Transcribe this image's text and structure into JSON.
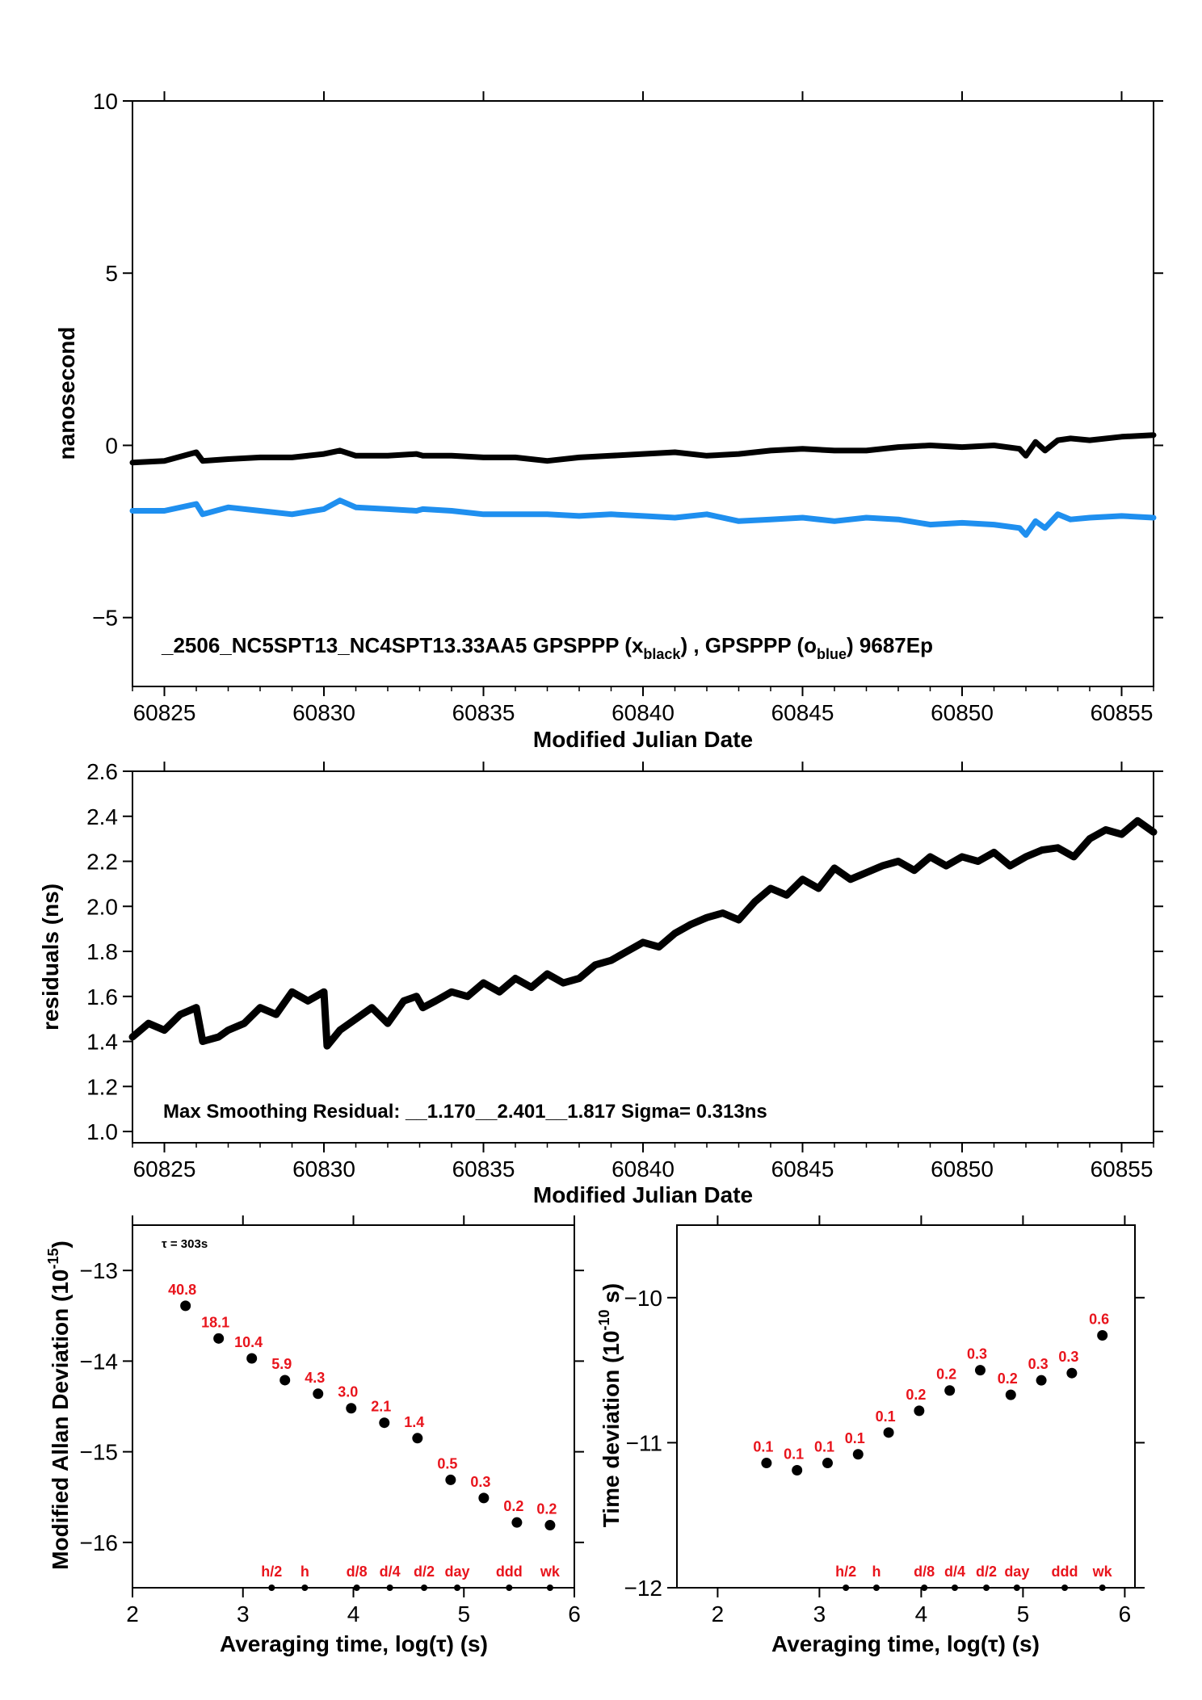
{
  "colors": {
    "black_series": "#000000",
    "blue_series": "#1f8fef",
    "label_red": "#e8141c"
  },
  "chart_data": [
    {
      "type": "line",
      "ylabel": "nanosecond",
      "xlabel": "Modified Julian Date",
      "xlim": [
        60824,
        60856
      ],
      "ylim": [
        -7,
        10
      ],
      "xticks": [
        60825,
        60830,
        60835,
        60840,
        60845,
        60850,
        60855
      ],
      "yticks": [
        -5,
        0,
        5,
        10
      ],
      "ytick_labels": [
        "−5",
        "0",
        "5",
        "10"
      ],
      "annotation": {
        "prefix": "_2506_NC5SPT13_NC4SPT13.33AA5     GPSPPP (x",
        "sub1": "black",
        "middle": ") ,  GPSPPP (o",
        "sub2": "blue",
        "suffix": ")  9687Ep"
      },
      "series": [
        {
          "color": "#000000",
          "x": [
            60824,
            60825,
            60826,
            60826.2,
            60827,
            60828,
            60829,
            60830,
            60830.5,
            60831,
            60832,
            60832.9,
            60833.1,
            60834,
            60835,
            60836,
            60837,
            60838,
            60839,
            60840,
            60841,
            60842,
            60843,
            60844,
            60845,
            60846,
            60847,
            60848,
            60849,
            60850,
            60851,
            60851.8,
            60852,
            60852.3,
            60852.6,
            60853,
            60853.4,
            60854,
            60855,
            60856
          ],
          "y": [
            -0.5,
            -0.45,
            -0.2,
            -0.45,
            -0.4,
            -0.35,
            -0.35,
            -0.25,
            -0.15,
            -0.3,
            -0.3,
            -0.25,
            -0.3,
            -0.3,
            -0.35,
            -0.35,
            -0.45,
            -0.35,
            -0.3,
            -0.25,
            -0.2,
            -0.3,
            -0.25,
            -0.15,
            -0.1,
            -0.15,
            -0.15,
            -0.05,
            0.0,
            -0.05,
            0.0,
            -0.1,
            -0.3,
            0.1,
            -0.15,
            0.15,
            0.2,
            0.15,
            0.25,
            0.3
          ]
        },
        {
          "color": "#1f8fef",
          "x": [
            60824,
            60825,
            60826,
            60826.2,
            60827,
            60828,
            60829,
            60830,
            60830.5,
            60831,
            60832,
            60832.9,
            60833.1,
            60834,
            60835,
            60836,
            60837,
            60838,
            60839,
            60840,
            60841,
            60842,
            60843,
            60844,
            60845,
            60846,
            60847,
            60848,
            60849,
            60850,
            60851,
            60851.8,
            60852,
            60852.3,
            60852.6,
            60853,
            60853.4,
            60854,
            60855,
            60856
          ],
          "y": [
            -1.9,
            -1.9,
            -1.7,
            -2.0,
            -1.8,
            -1.9,
            -2.0,
            -1.85,
            -1.6,
            -1.8,
            -1.85,
            -1.9,
            -1.85,
            -1.9,
            -2.0,
            -2.0,
            -2.0,
            -2.05,
            -2.0,
            -2.05,
            -2.1,
            -2.0,
            -2.2,
            -2.15,
            -2.1,
            -2.2,
            -2.1,
            -2.15,
            -2.3,
            -2.25,
            -2.3,
            -2.4,
            -2.6,
            -2.2,
            -2.4,
            -2.0,
            -2.15,
            -2.1,
            -2.05,
            -2.1
          ]
        }
      ]
    },
    {
      "type": "line",
      "ylabel": "residuals (ns)",
      "xlabel": "Modified Julian Date",
      "xlim": [
        60824,
        60856
      ],
      "ylim": [
        0.95,
        2.6
      ],
      "xticks": [
        60825,
        60830,
        60835,
        60840,
        60845,
        60850,
        60855
      ],
      "yticks": [
        1.0,
        1.2,
        1.4,
        1.6,
        1.8,
        2.0,
        2.2,
        2.4,
        2.6
      ],
      "ytick_labels": [
        "1.0",
        "1.2",
        "1.4",
        "1.6",
        "1.8",
        "2.0",
        "2.2",
        "2.4",
        "2.6"
      ],
      "annotation": "Max Smoothing Residual: __1.170__2.401__1.817  Sigma= 0.313ns",
      "series": [
        {
          "color": "#000000",
          "x": [
            60824,
            60824.5,
            60825,
            60825.5,
            60826,
            60826.2,
            60826.7,
            60827,
            60827.5,
            60828,
            60828.5,
            60829,
            60829.5,
            60830,
            60830.1,
            60830.5,
            60831,
            60831.5,
            60832,
            60832.5,
            60832.9,
            60833.1,
            60833.5,
            60834,
            60834.5,
            60835,
            60835.5,
            60836,
            60836.5,
            60837,
            60837.5,
            60838,
            60838.5,
            60839,
            60839.5,
            60840,
            60840.5,
            60841,
            60841.5,
            60842,
            60842.5,
            60843,
            60843.5,
            60844,
            60844.5,
            60845,
            60845.5,
            60846,
            60846.5,
            60847,
            60847.5,
            60848,
            60848.5,
            60849,
            60849.5,
            60850,
            60850.5,
            60851,
            60851.5,
            60852,
            60852.5,
            60853,
            60853.5,
            60854,
            60854.5,
            60855,
            60855.5,
            60856
          ],
          "y": [
            1.42,
            1.48,
            1.45,
            1.52,
            1.55,
            1.4,
            1.42,
            1.45,
            1.48,
            1.55,
            1.52,
            1.62,
            1.58,
            1.62,
            1.38,
            1.45,
            1.5,
            1.55,
            1.48,
            1.58,
            1.6,
            1.55,
            1.58,
            1.62,
            1.6,
            1.66,
            1.62,
            1.68,
            1.64,
            1.7,
            1.66,
            1.68,
            1.74,
            1.76,
            1.8,
            1.84,
            1.82,
            1.88,
            1.92,
            1.95,
            1.97,
            1.94,
            2.02,
            2.08,
            2.05,
            2.12,
            2.08,
            2.17,
            2.12,
            2.15,
            2.18,
            2.2,
            2.16,
            2.22,
            2.18,
            2.22,
            2.2,
            2.24,
            2.18,
            2.22,
            2.25,
            2.26,
            2.22,
            2.3,
            2.34,
            2.32,
            2.38,
            2.33
          ]
        }
      ]
    },
    {
      "type": "scatter",
      "ylabel": "Modified Allan Deviation (10",
      "ylabel_sup": "-15",
      "ylabel_end": ")",
      "xlabel": "Averaging time, log(τ) (s)",
      "tau_note": "τ = 303s",
      "xlim": [
        2,
        6
      ],
      "ylim": [
        -16.5,
        -12.5
      ],
      "xticks": [
        2,
        3,
        4,
        5,
        6
      ],
      "yticks": [
        -16,
        -15,
        -14,
        -13
      ],
      "ytick_labels": [
        "−16",
        "−15",
        "−14",
        "−13"
      ],
      "x": [
        2.48,
        2.78,
        3.08,
        3.38,
        3.68,
        3.98,
        4.28,
        4.58,
        4.88,
        5.18,
        5.48,
        5.78
      ],
      "y": [
        -13.39,
        -13.75,
        -13.97,
        -14.21,
        -14.36,
        -14.52,
        -14.68,
        -14.85,
        -15.31,
        -15.51,
        -15.78,
        -15.81
      ],
      "point_labels": [
        "40.8",
        "18.1",
        "10.4",
        "5.9",
        "4.3",
        "3.0",
        "2.1",
        "1.4",
        "0.5",
        "0.3",
        "0.2",
        "0.2"
      ],
      "markers": [
        {
          "label": "h/2",
          "x": 3.26
        },
        {
          "label": "h",
          "x": 3.56
        },
        {
          "label": "d/8",
          "x": 4.03
        },
        {
          "label": "d/4",
          "x": 4.33
        },
        {
          "label": "d/2",
          "x": 4.64
        },
        {
          "label": "day",
          "x": 4.94
        },
        {
          "label": "ddd",
          "x": 5.41
        },
        {
          "label": "wk",
          "x": 5.78
        }
      ]
    },
    {
      "type": "scatter",
      "ylabel": "Time deviation (10",
      "ylabel_sup": "-10",
      "ylabel_end": " s)",
      "xlabel": "Averaging time, log(τ) (s)",
      "xlim": [
        1.6,
        6.1
      ],
      "ylim": [
        -12,
        -9.5
      ],
      "xticks": [
        2,
        3,
        4,
        5,
        6
      ],
      "yticks": [
        -12,
        -11,
        -10
      ],
      "ytick_labels": [
        "−12",
        "−11",
        "−10"
      ],
      "x": [
        2.48,
        2.78,
        3.08,
        3.38,
        3.68,
        3.98,
        4.28,
        4.58,
        4.88,
        5.18,
        5.48,
        5.78
      ],
      "y": [
        -11.14,
        -11.19,
        -11.14,
        -11.08,
        -10.93,
        -10.78,
        -10.64,
        -10.5,
        -10.67,
        -10.57,
        -10.52,
        -10.26
      ],
      "point_labels": [
        "0.1",
        "0.1",
        "0.1",
        "0.1",
        "0.1",
        "0.2",
        "0.2",
        "0.3",
        "0.2",
        "0.3",
        "0.3",
        "0.6"
      ],
      "markers": [
        {
          "label": "h/2",
          "x": 3.26
        },
        {
          "label": "h",
          "x": 3.56
        },
        {
          "label": "d/8",
          "x": 4.03
        },
        {
          "label": "d/4",
          "x": 4.33
        },
        {
          "label": "d/2",
          "x": 4.64
        },
        {
          "label": "day",
          "x": 4.94
        },
        {
          "label": "ddd",
          "x": 5.41
        },
        {
          "label": "wk",
          "x": 5.78
        }
      ]
    }
  ]
}
